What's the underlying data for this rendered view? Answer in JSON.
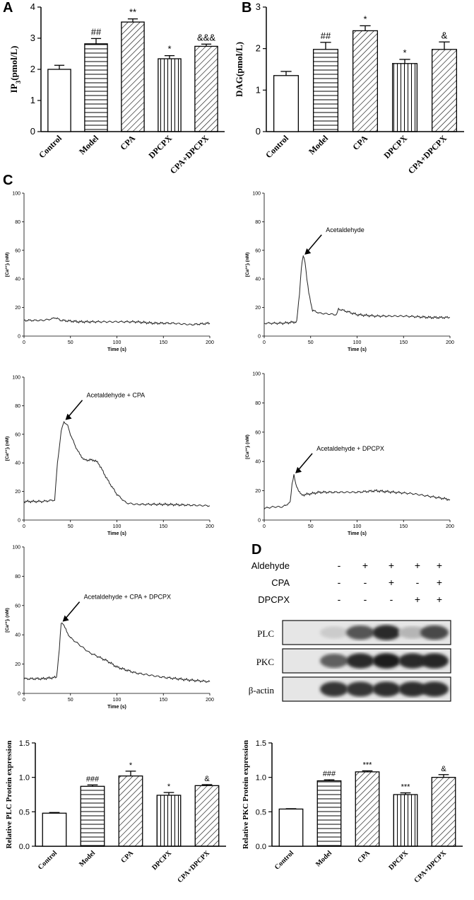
{
  "panels": {
    "A": "A",
    "B": "B",
    "C": "C",
    "D": "D"
  },
  "chart_data": [
    {
      "id": "A",
      "type": "bar",
      "categories": [
        "Control",
        "Model",
        "CPA",
        "DPCPX",
        "CPA+DPCPX"
      ],
      "values": [
        2.0,
        2.82,
        3.52,
        2.34,
        2.74
      ],
      "errors": [
        0.13,
        0.17,
        0.1,
        0.1,
        0.07
      ],
      "annotations": [
        "",
        "##",
        "**",
        "*",
        "&&&"
      ],
      "patterns": [
        "none",
        "hlines",
        "diag",
        "vlines",
        "diag"
      ],
      "ylabel_main": "IP",
      "ylabel_sub": "3",
      "ylabel_unit": "(pmol/L)",
      "ylim": [
        0,
        4
      ],
      "yticks": [
        "0",
        "1",
        "2",
        "3",
        "4"
      ]
    },
    {
      "id": "B",
      "type": "bar",
      "categories": [
        "Control",
        "Model",
        "CPA",
        "DPCPX",
        "CPA+DPCPX"
      ],
      "values": [
        1.35,
        1.98,
        2.43,
        1.64,
        1.98
      ],
      "errors": [
        0.1,
        0.17,
        0.12,
        0.1,
        0.18
      ],
      "annotations": [
        "",
        "##",
        "*",
        "*",
        "&"
      ],
      "patterns": [
        "none",
        "hlines",
        "diag",
        "vlines",
        "diag"
      ],
      "ylabel": "DAG(pmol/L)",
      "ylim": [
        0,
        3
      ],
      "yticks": [
        "0",
        "1",
        "2",
        "3"
      ]
    },
    {
      "id": "C1",
      "type": "line",
      "ylabel": "[Ca²⁺]ᵢ (nM)",
      "xlabel": "Time (s)",
      "xlim": [
        0,
        200
      ],
      "ylim": [
        0,
        100
      ],
      "xticks": [
        "0",
        "50",
        "100",
        "150",
        "200"
      ],
      "yticks": [
        "0",
        "20",
        "40",
        "60",
        "80",
        "100"
      ],
      "annotation": "",
      "x": [
        0,
        20,
        30,
        33,
        40,
        60,
        80,
        100,
        120,
        140,
        160,
        180,
        200
      ],
      "y": [
        11,
        11,
        12,
        13,
        11,
        10,
        10,
        10,
        10,
        9,
        9,
        8,
        9
      ]
    },
    {
      "id": "C2",
      "type": "line",
      "ylabel": "[Ca²⁺]ᵢ (nM)",
      "xlabel": "Time (s)",
      "xlim": [
        0,
        200
      ],
      "ylim": [
        0,
        100
      ],
      "xticks": [
        "0",
        "50",
        "100",
        "150",
        "200"
      ],
      "yticks": [
        "0",
        "20",
        "40",
        "60",
        "80",
        "100"
      ],
      "annotation": "Acetaldehyde",
      "x": [
        0,
        20,
        35,
        38,
        40,
        42,
        44,
        46,
        48,
        52,
        60,
        78,
        80,
        100,
        120,
        150,
        180,
        200
      ],
      "y": [
        9,
        9,
        10,
        30,
        48,
        56,
        52,
        40,
        30,
        18,
        16,
        15,
        19,
        15,
        14,
        14,
        13,
        13
      ]
    },
    {
      "id": "C3",
      "type": "line",
      "ylabel": "[Ca²⁺]ᵢ (nM)",
      "xlabel": "Time (s)",
      "xlim": [
        0,
        200
      ],
      "ylim": [
        0,
        100
      ],
      "xticks": [
        "0",
        "50",
        "100",
        "150",
        "200"
      ],
      "yticks": [
        "0",
        "20",
        "40",
        "60",
        "80",
        "100"
      ],
      "annotation": "Acetaldehyde + CPA",
      "x": [
        0,
        20,
        33,
        36,
        40,
        43,
        47,
        50,
        55,
        60,
        65,
        70,
        75,
        80,
        90,
        100,
        110,
        120,
        150,
        200
      ],
      "y": [
        13,
        13,
        14,
        40,
        62,
        69,
        66,
        60,
        52,
        46,
        42,
        42,
        42,
        40,
        28,
        18,
        12,
        11,
        11,
        10
      ]
    },
    {
      "id": "C4",
      "type": "line",
      "ylabel": "[Ca²⁺]ᵢ (nM)",
      "xlabel": "Time (s)",
      "xlim": [
        0,
        200
      ],
      "ylim": [
        0,
        100
      ],
      "xticks": [
        "0",
        "50",
        "100",
        "150",
        "200"
      ],
      "yticks": [
        "0",
        "20",
        "40",
        "60",
        "80",
        "100"
      ],
      "annotation": "Acetaldehyde + DPCPX",
      "x": [
        0,
        10,
        20,
        28,
        30,
        32,
        34,
        40,
        60,
        80,
        100,
        120,
        140,
        160,
        180,
        200
      ],
      "y": [
        8,
        9,
        9,
        12,
        25,
        31,
        24,
        17,
        19,
        19,
        19,
        20,
        19,
        18,
        16,
        14
      ]
    },
    {
      "id": "C5",
      "type": "line",
      "ylabel": "[Ca²⁺]ᵢ (nM)",
      "xlabel": "Time (s)",
      "xlim": [
        0,
        200
      ],
      "ylim": [
        0,
        100
      ],
      "xticks": [
        "0",
        "50",
        "100",
        "150",
        "200"
      ],
      "yticks": [
        "0",
        "20",
        "40",
        "60",
        "80",
        "100"
      ],
      "annotation": "Acetaldehyde + CPA + DPCPX",
      "x": [
        0,
        20,
        35,
        38,
        40,
        42,
        46,
        50,
        60,
        70,
        80,
        90,
        100,
        120,
        150,
        180,
        200
      ],
      "y": [
        10,
        10,
        11,
        30,
        48,
        48,
        42,
        38,
        33,
        28,
        25,
        22,
        18,
        14,
        11,
        9,
        8
      ]
    },
    {
      "id": "D-PLC",
      "type": "bar",
      "categories": [
        "Control",
        "Model",
        "CPA",
        "DPCPX",
        "CPA+DPCPX"
      ],
      "values": [
        0.48,
        0.87,
        1.02,
        0.74,
        0.88
      ],
      "errors": [
        0.01,
        0.02,
        0.07,
        0.04,
        0.015
      ],
      "annotations": [
        "",
        "###",
        "*",
        "*",
        "&"
      ],
      "patterns": [
        "none",
        "hlines",
        "diag",
        "vlines",
        "diag"
      ],
      "ylabel": "Relative PLC Protein expression",
      "ylim": [
        0,
        1.5
      ],
      "yticks": [
        "0.0",
        "0.5",
        "1.0",
        "1.5"
      ]
    },
    {
      "id": "D-PKC",
      "type": "bar",
      "categories": [
        "Control",
        "Model",
        "CPA",
        "DPCPX",
        "CPA+DPCPX"
      ],
      "values": [
        0.54,
        0.95,
        1.08,
        0.75,
        1.0
      ],
      "errors": [
        0.005,
        0.015,
        0.015,
        0.025,
        0.04
      ],
      "annotations": [
        "",
        "###",
        "***",
        "***",
        "&"
      ],
      "patterns": [
        "none",
        "hlines",
        "diag",
        "vlines",
        "diag"
      ],
      "ylabel": "Relative PKC Protein expression",
      "ylim": [
        0,
        1.5
      ],
      "yticks": [
        "0.0",
        "0.5",
        "1.0",
        "1.5"
      ]
    }
  ],
  "blot": {
    "conditions": [
      {
        "label": "Aldehyde",
        "marks": [
          "-",
          "+",
          "+",
          "+",
          "+"
        ]
      },
      {
        "label": "CPA",
        "marks": [
          "-",
          "-",
          "+",
          "-",
          "+"
        ]
      },
      {
        "label": "DPCPX",
        "marks": [
          "-",
          "-",
          "-",
          "+",
          "+"
        ]
      }
    ],
    "rows": [
      {
        "label": "PLC",
        "intensity": [
          0.15,
          0.7,
          0.9,
          0.25,
          0.75
        ]
      },
      {
        "label": "PKC",
        "intensity": [
          0.65,
          0.9,
          0.95,
          0.9,
          0.92
        ]
      },
      {
        "label": "β-actin",
        "intensity": [
          0.85,
          0.85,
          0.88,
          0.88,
          0.88
        ]
      }
    ]
  }
}
